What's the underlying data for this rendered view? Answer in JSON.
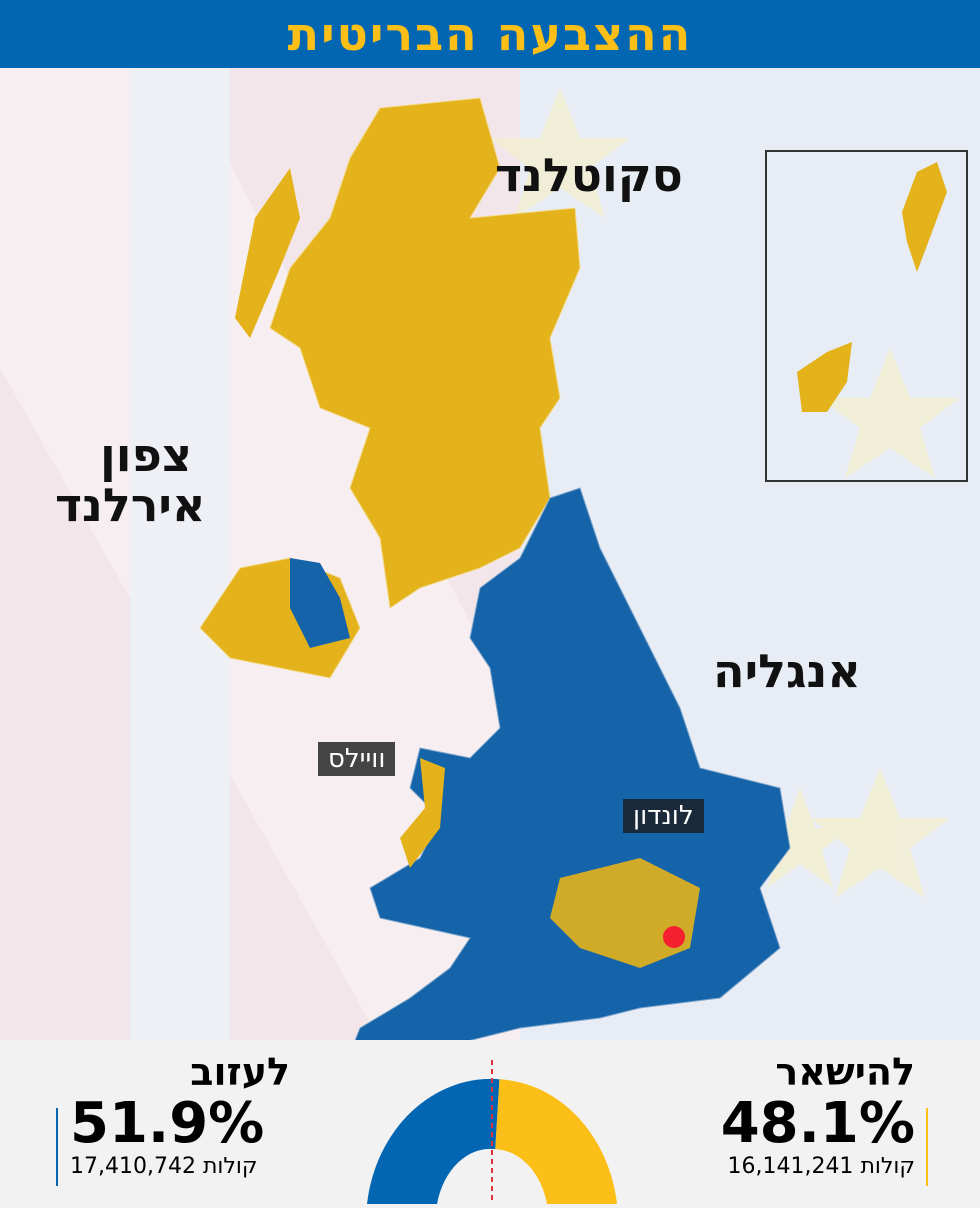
{
  "header": {
    "title": "ההצבעה הבריטית"
  },
  "map": {
    "regions": {
      "scotland": "סקוטלנד",
      "northern_ireland_line1": "צפון",
      "northern_ireland_line2": "אירלנד",
      "england": "אנגליה",
      "wales": "וויילס",
      "london": "לונדון"
    },
    "colors": {
      "remain": "#e6b21a",
      "leave": "#1563a8",
      "london_marker": "#f5202f"
    }
  },
  "results": {
    "leave": {
      "label": "לעזוב",
      "percent": "51.9%",
      "votes": "17,410,742",
      "votes_unit": "קולות",
      "share": 51.9,
      "color": "#0266b2"
    },
    "remain": {
      "label": "להישאר",
      "percent": "48.1%",
      "votes": "16,141,241",
      "votes_unit": "קולות",
      "share": 48.1,
      "color": "#fbbf17"
    }
  }
}
